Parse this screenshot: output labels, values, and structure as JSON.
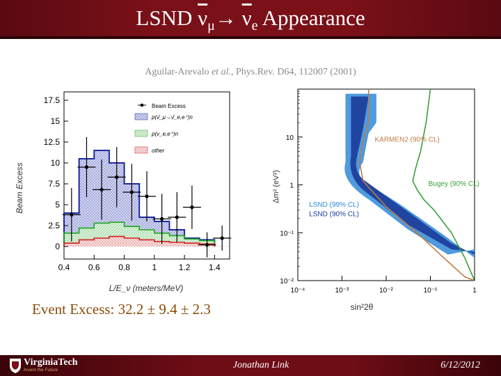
{
  "slide": {
    "title_prefix": "LSND ",
    "title_nu_mu": "ν",
    "title_sub_mu": "μ",
    "title_arrow": "→ ",
    "title_nu_e": "ν",
    "title_sub_e": "e",
    "title_suffix": " Appearance",
    "citation_authors": "Aguilar-Arevalo ",
    "citation_etal": "et al.",
    "citation_ref": ", Phys.Rev. D64, 112007 (2001)",
    "event_excess": "Event Excess: 32.2 ± 9.4 ± 2.3",
    "author": "Jonathan Link",
    "date": "6/12/2012",
    "logo_text": "VirginiaTech",
    "logo_tagline": "Invent the Future",
    "colors": {
      "header": "#7a1018",
      "footer": "#6e0d16",
      "excess_text": "#8a4a06"
    }
  },
  "chart_data": [
    {
      "type": "bar",
      "title": "",
      "xlabel": "L/E_ν (meters/MeV)",
      "ylabel": "Beam Excess",
      "xlim": [
        0.4,
        1.5
      ],
      "ylim": [
        -1.5,
        18.5
      ],
      "xticks": [
        "0.4",
        "0.6",
        "0.8",
        "1",
        "1.2",
        "1.4"
      ],
      "yticks": [
        "0",
        "2.5",
        "5",
        "7.5",
        "10",
        "12.5",
        "15",
        "17.5"
      ],
      "bin_edges": [
        0.4,
        0.5,
        0.6,
        0.7,
        0.8,
        0.9,
        1.0,
        1.1,
        1.2,
        1.3,
        1.4
      ],
      "series": [
        {
          "name": "p(ν̄_μ→ν̄_e,e⁺)n",
          "values": [
            4.0,
            10.5,
            11.5,
            10.0,
            7.5,
            3.5,
            3.0,
            2.0,
            1.0,
            0.8
          ]
        },
        {
          "name": "p(ν_e,e⁺)n",
          "values": [
            1.6,
            2.2,
            2.8,
            2.9,
            2.4,
            2.0,
            1.6,
            1.3,
            0.9,
            0.7
          ]
        },
        {
          "name": "other",
          "values": [
            0.4,
            0.8,
            1.0,
            1.2,
            1.0,
            0.8,
            0.6,
            0.5,
            0.4,
            0.3
          ]
        }
      ],
      "points": {
        "name": "Beam Excess",
        "x": [
          0.45,
          0.55,
          0.65,
          0.75,
          0.85,
          0.95,
          1.05,
          1.15,
          1.25,
          1.35,
          1.45
        ],
        "y": [
          3.8,
          9.5,
          6.8,
          8.3,
          6.5,
          6.0,
          3.3,
          3.5,
          4.7,
          0.2,
          1.0
        ],
        "err": [
          3.2,
          3.6,
          3.6,
          3.6,
          3.4,
          3.0,
          3.0,
          3.0,
          2.6,
          1.5,
          1.5
        ]
      }
    },
    {
      "type": "scatter",
      "title": "",
      "xlabel": "sin²2θ",
      "ylabel": "Δm² (eV²)",
      "xscale": "log",
      "yscale": "log",
      "xlim": [
        0.0001,
        1
      ],
      "ylim": [
        0.01,
        100
      ],
      "xticks": [
        "10⁻⁴",
        "10⁻³",
        "10⁻²",
        "10⁻¹",
        "1"
      ],
      "yticks": [
        "10⁻²",
        "10⁻¹",
        "1",
        "10"
      ],
      "regions": [
        {
          "name": "LSND (99% CL)",
          "color": "#2f8ad8"
        },
        {
          "name": "LSND (90% CL)",
          "color": "#1c3c9a"
        }
      ],
      "curves": [
        {
          "name": "KARMEN2 (90% CL)",
          "color": "#c07a45",
          "x": [
            0.004,
            0.004,
            0.003,
            0.0025,
            0.003,
            0.01,
            0.05,
            0.2,
            0.6,
            1.0
          ],
          "y": [
            100,
            20,
            8,
            3,
            1.2,
            0.35,
            0.1,
            0.03,
            0.012,
            0.01
          ]
        },
        {
          "name": "Bugey (90% CL)",
          "color": "#3aa03a",
          "x": [
            0.1,
            0.08,
            0.06,
            0.045,
            0.04,
            0.05,
            0.07,
            0.12,
            0.3,
            0.6,
            1.0
          ],
          "y": [
            100,
            20,
            5,
            2,
            1.2,
            0.8,
            0.5,
            0.3,
            0.1,
            0.03,
            0.01
          ]
        }
      ]
    }
  ]
}
